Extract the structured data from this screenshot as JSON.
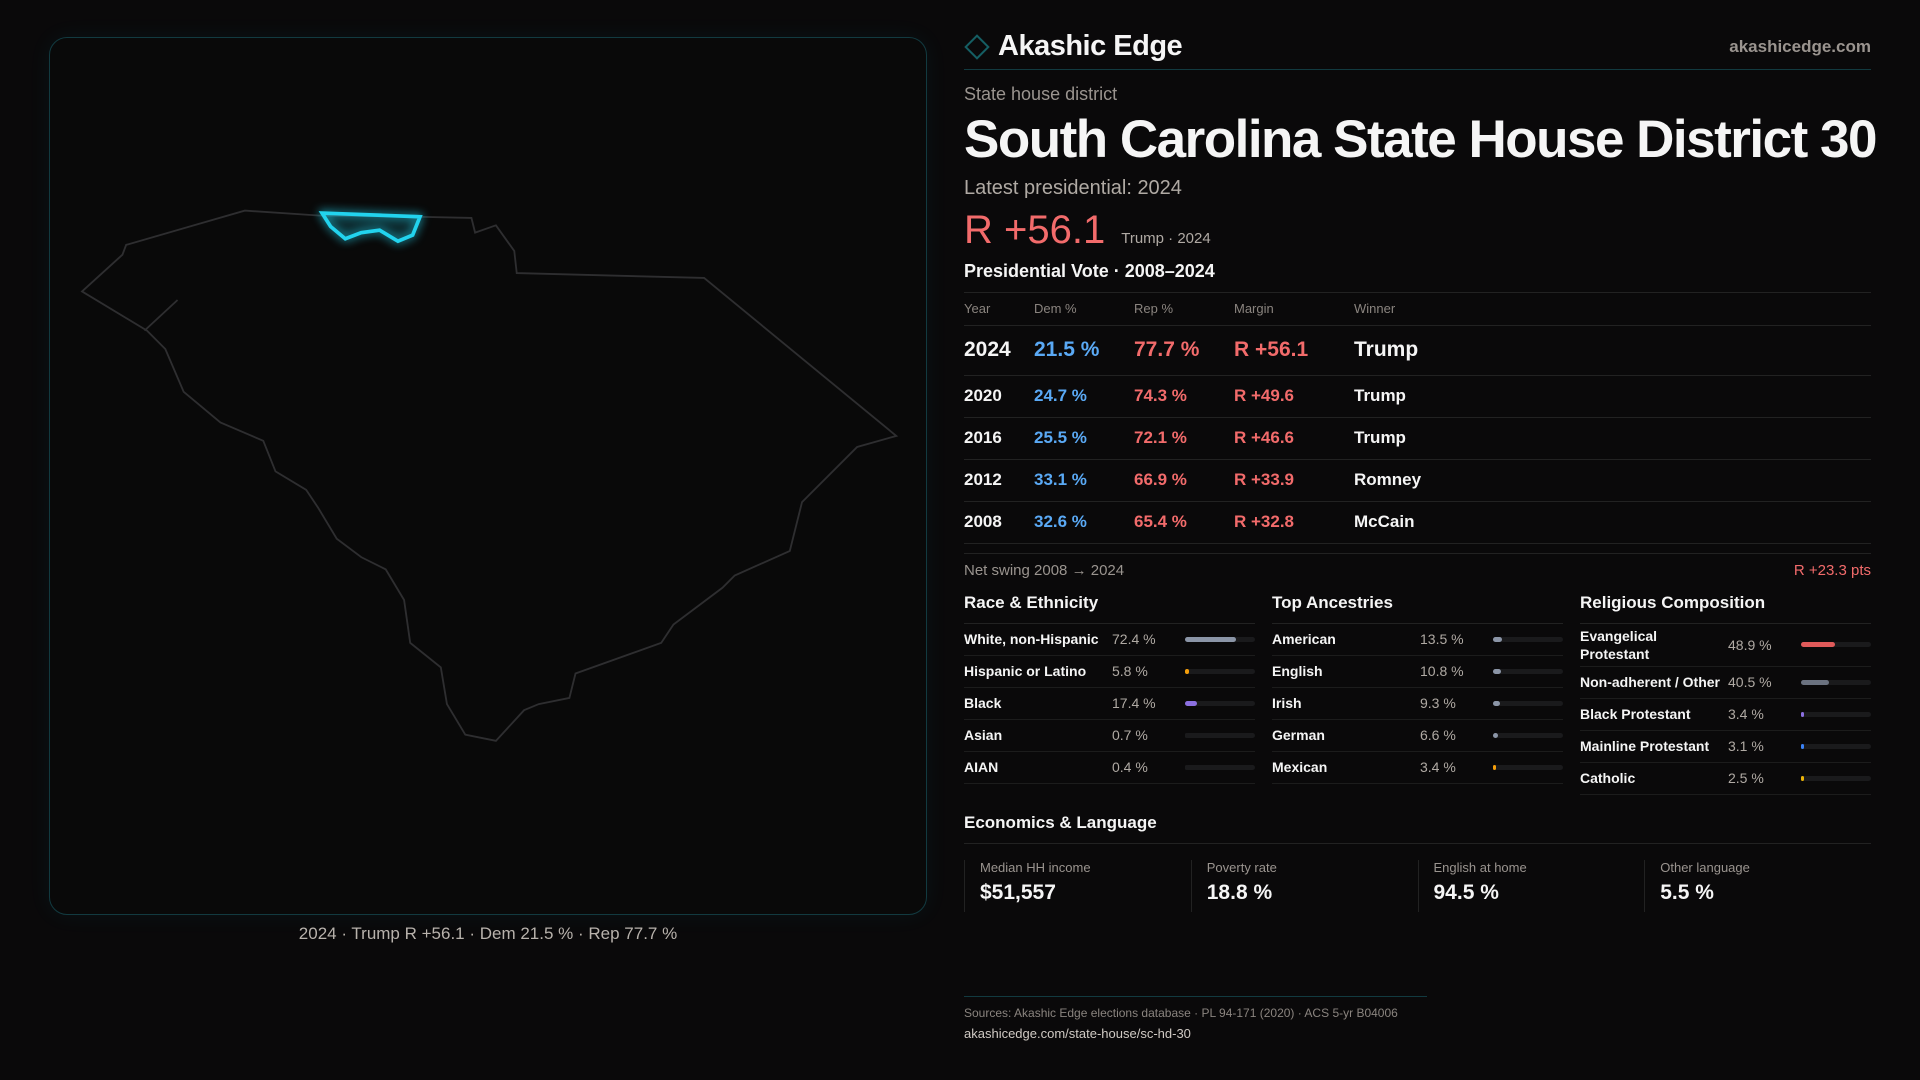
{
  "map": {
    "caption": "2024 · Trump R +56.1 · Dem 21.5 % · Rep 77.7 %",
    "highlight_color": "#22d3ee"
  },
  "header": {
    "brand": "Akashic Edge",
    "site": "akashicedge.com",
    "logo_icon": "diamond-icon"
  },
  "kicker": "State house district",
  "title": "South Carolina State House District 30",
  "latest_label": "Latest presidential: 2024",
  "latest_margin": "R +56.1",
  "latest_sub": "Trump · 2024",
  "presidential": {
    "title": "Presidential Vote · 2008–2024",
    "columns": [
      "Year",
      "Dem %",
      "Rep %",
      "Margin",
      "Winner"
    ],
    "rows": [
      {
        "year": "2024",
        "dem": "21.5 %",
        "rep": "77.7 %",
        "margin": "R +56.1",
        "winner": "Trump"
      },
      {
        "year": "2020",
        "dem": "24.7 %",
        "rep": "74.3 %",
        "margin": "R +49.6",
        "winner": "Trump"
      },
      {
        "year": "2016",
        "dem": "25.5 %",
        "rep": "72.1 %",
        "margin": "R +46.6",
        "winner": "Trump"
      },
      {
        "year": "2012",
        "dem": "33.1 %",
        "rep": "66.9 %",
        "margin": "R +33.9",
        "winner": "Romney"
      },
      {
        "year": "2008",
        "dem": "32.6 %",
        "rep": "65.4 %",
        "margin": "R +32.8",
        "winner": "McCain"
      }
    ],
    "swing_label": "Net swing 2008 → 2024",
    "swing_value": "R +23.3 pts",
    "dem_color": "#5aa9f5",
    "rep_color": "#f26b6b"
  },
  "demographics": [
    {
      "title": "Race & Ethnicity",
      "items": [
        {
          "label": "White, non-Hispanic",
          "value": "72.4 %",
          "pct": 72.4,
          "color": "#8b95a7"
        },
        {
          "label": "Hispanic or Latino",
          "value": "5.8 %",
          "pct": 5.8,
          "color": "#f59e0b"
        },
        {
          "label": "Black",
          "value": "17.4 %",
          "pct": 17.4,
          "color": "#8b6fe0"
        },
        {
          "label": "Asian",
          "value": "0.7 %",
          "pct": 0.7,
          "color": "#1a1a1c"
        },
        {
          "label": "AIAN",
          "value": "0.4 %",
          "pct": 0.4,
          "color": "#1a1a1c"
        }
      ]
    },
    {
      "title": "Top Ancestries",
      "items": [
        {
          "label": "American",
          "value": "13.5 %",
          "pct": 13.5,
          "color": "#8b95a7"
        },
        {
          "label": "English",
          "value": "10.8 %",
          "pct": 10.8,
          "color": "#8b95a7"
        },
        {
          "label": "Irish",
          "value": "9.3 %",
          "pct": 9.3,
          "color": "#8b95a7"
        },
        {
          "label": "German",
          "value": "6.6 %",
          "pct": 6.6,
          "color": "#8b95a7"
        },
        {
          "label": "Mexican",
          "value": "3.4 %",
          "pct": 3.4,
          "color": "#f59e0b"
        }
      ]
    },
    {
      "title": "Religious Composition",
      "items": [
        {
          "label": "Evangelical Protestant",
          "value": "48.9 %",
          "pct": 48.9,
          "color": "#e05a5a"
        },
        {
          "label": "Non-adherent / Other",
          "value": "40.5 %",
          "pct": 40.5,
          "color": "#6b7280"
        },
        {
          "label": "Black Protestant",
          "value": "3.4 %",
          "pct": 3.4,
          "color": "#8b6fe0"
        },
        {
          "label": "Mainline Protestant",
          "value": "3.1 %",
          "pct": 3.1,
          "color": "#3b82f6"
        },
        {
          "label": "Catholic",
          "value": "2.5 %",
          "pct": 2.5,
          "color": "#eab308"
        }
      ]
    }
  ],
  "economics": {
    "title": "Economics & Language",
    "cards": [
      {
        "label": "Median HH income",
        "value": "$51,557"
      },
      {
        "label": "Poverty rate",
        "value": "18.8 %"
      },
      {
        "label": "English at home",
        "value": "94.5 %"
      },
      {
        "label": "Other language",
        "value": "5.5 %"
      }
    ]
  },
  "footer": {
    "sources": "Sources: Akashic Edge elections database · PL 94-171 (2020) · ACS 5-yr B04006",
    "url": "akashicedge.com/state-house/sc-hd-30"
  }
}
